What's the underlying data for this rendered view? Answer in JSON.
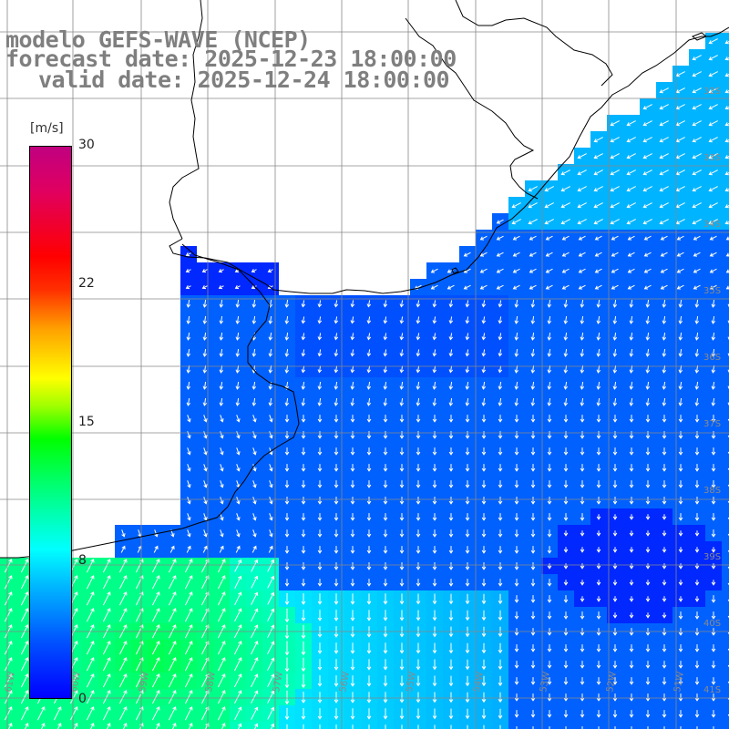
{
  "title": {
    "line1": "modelo GEFS-WAVE (NCEP)",
    "line2": "forecast date: 2025-12-23 18:00:00",
    "line3": "valid date: 2025-12-24 18:00:00"
  },
  "colorbar": {
    "unit": "[m/s]",
    "ticks": [
      "30",
      "22",
      "15",
      "8",
      "0"
    ],
    "range": [
      0,
      30
    ],
    "stops": [
      "#0000ff",
      "#00b4ff",
      "#00ffff",
      "#00ff00",
      "#ffff00",
      "#ff0000",
      "#c00080"
    ]
  },
  "grid": {
    "lat_labels": [
      "32S",
      "33S",
      "34S",
      "35S",
      "36S",
      "37S",
      "38S",
      "39S",
      "40S",
      "41S"
    ],
    "lon_labels": [
      "61W",
      "60W",
      "59W",
      "58W",
      "57W",
      "56W",
      "55W",
      "54W",
      "53W",
      "52W",
      "51W"
    ]
  },
  "map": {
    "variable": "wind speed",
    "land_color": "#ffffff",
    "coast_color": "#000000",
    "arrow_color": "#ffffff"
  }
}
